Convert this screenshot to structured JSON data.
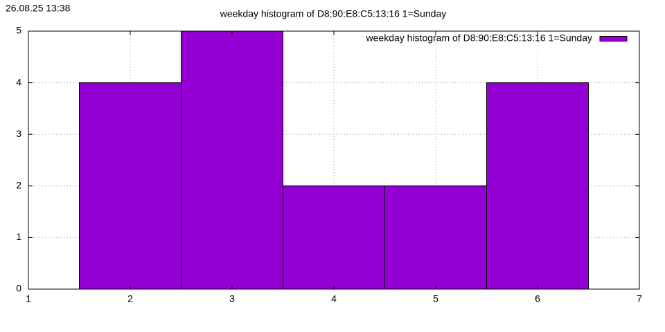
{
  "chart_data": {
    "type": "histogram",
    "title": "weekday histogram of D8:90:E8:C5:13:16 1=Sunday",
    "annotation": "26.08.25 13:38",
    "bins": [
      1.5,
      2.5,
      3.5,
      4.5,
      5.5,
      6.5
    ],
    "series": [
      {
        "name": "weekday histogram of D8:90:E8:C5:13:16 1=Sunday",
        "color": "#9400d3",
        "values": [
          4,
          5,
          2,
          2,
          4
        ]
      }
    ],
    "xlim": [
      1,
      7
    ],
    "xticks": [
      1,
      2,
      3,
      4,
      5,
      6,
      7
    ],
    "ylim": [
      0,
      5
    ],
    "yticks": [
      0,
      1,
      2,
      3,
      4,
      5
    ],
    "grid": true,
    "legend": "top right"
  }
}
